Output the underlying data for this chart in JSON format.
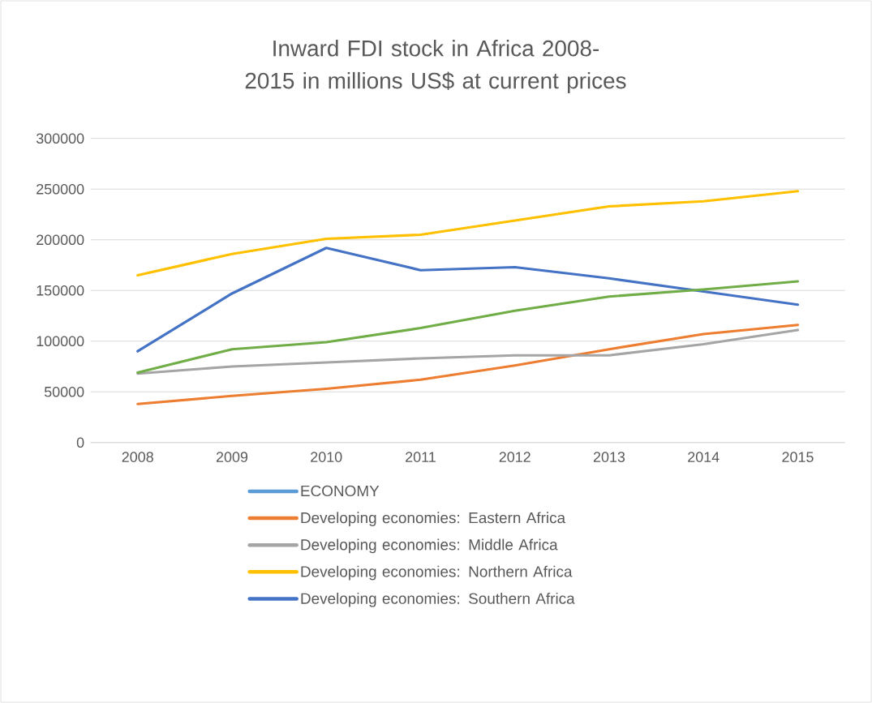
{
  "chart_data": {
    "type": "line",
    "title": "Inward FDI stock in Africa 2008-2015 in millions US$ at current prices",
    "categories": [
      "2008",
      "2009",
      "2010",
      "2011",
      "2012",
      "2013",
      "2014",
      "2015"
    ],
    "series": [
      {
        "name": "ECONOMY",
        "color": "#5b9bd5",
        "values": [
          null,
          null,
          null,
          null,
          null,
          null,
          null,
          null
        ]
      },
      {
        "name": "Developing economies: Eastern Africa",
        "color": "#ed7d31",
        "values": [
          38000,
          46000,
          53000,
          62000,
          76000,
          92000,
          107000,
          116000
        ]
      },
      {
        "name": "Developing economies: Middle Africa",
        "color": "#a5a5a5",
        "values": [
          68000,
          75000,
          79000,
          83000,
          86000,
          86000,
          97000,
          111000
        ]
      },
      {
        "name": "Developing economies: Northern Africa",
        "color": "#ffc000",
        "values": [
          165000,
          186000,
          201000,
          205000,
          219000,
          233000,
          238000,
          248000
        ]
      },
      {
        "name": "Developing economies: Southern Africa",
        "color": "#4472c4",
        "values": [
          90000,
          147000,
          192000,
          170000,
          173000,
          162000,
          149000,
          136000
        ]
      },
      {
        "color": "#70ad47",
        "values": [
          69000,
          92000,
          99000,
          113000,
          130000,
          144000,
          151000,
          159000
        ]
      }
    ],
    "ylim": [
      0,
      300000
    ],
    "yticks": [
      0,
      50000,
      100000,
      150000,
      200000,
      250000,
      300000
    ],
    "grid": "y",
    "legend": "bottom",
    "line_style": "solid",
    "marker": "none"
  }
}
